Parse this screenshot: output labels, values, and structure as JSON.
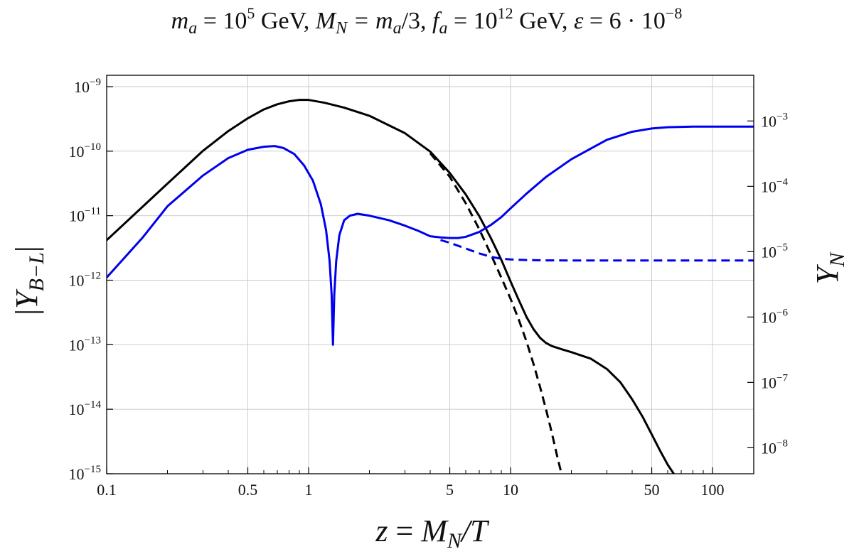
{
  "chart_data": {
    "type": "line",
    "title": "m_a = 10^5 GeV, M_N = m_a/3, f_a = 10^12 GeV, ε = 6·10^-8",
    "title_parts": {
      "lhs": "m",
      "ma_sub": "a",
      "eq1": " = 10",
      "exp1": "5",
      "gev1": " GeV, ",
      "mn": "M",
      "mn_sub": "N",
      "eq2": " = m",
      "ma2_sub": "a",
      "div": "/3, ",
      "fa": "f",
      "fa_sub": "a",
      "eq3": " = 10",
      "exp3": "12",
      "gev3": " GeV, ",
      "eps": "ε",
      "eq4": " = 6 · 10",
      "exp4": "−8"
    },
    "xlabel": "z = M_N/T",
    "xlabel_parts": {
      "z": "z",
      "eq": " = ",
      "M": "M",
      "sub": "N",
      "rest": "/T"
    },
    "ylabel_left": "|Y_B−L|",
    "ylabel_left_parts": {
      "bar1": "|",
      "Y": "Y",
      "sub": "B−L",
      "bar2": "|"
    },
    "ylabel_right": "Y_N",
    "ylabel_right_parts": {
      "Y": "Y",
      "sub": "N"
    },
    "x_scale": "log",
    "y_scale_left": "log",
    "y_scale_right": "log",
    "xlim": [
      0.1,
      160
    ],
    "ylim_left": [
      1e-15,
      1.5e-09
    ],
    "ylim_right": [
      4e-09,
      0.005
    ],
    "grid": true,
    "x_ticks": [
      {
        "value": 0.1,
        "label": "0.1"
      },
      {
        "value": 0.5,
        "label": "0.5"
      },
      {
        "value": 1,
        "label": "1"
      },
      {
        "value": 5,
        "label": "5"
      },
      {
        "value": 10,
        "label": "10"
      },
      {
        "value": 50,
        "label": "50"
      },
      {
        "value": 100,
        "label": "100"
      }
    ],
    "y_ticks_left": [
      {
        "value": 1e-09,
        "base": "10",
        "exp": "−9"
      },
      {
        "value": 1e-10,
        "base": "10",
        "exp": "−10"
      },
      {
        "value": 1e-11,
        "base": "10",
        "exp": "−11"
      },
      {
        "value": 1e-12,
        "base": "10",
        "exp": "−12"
      },
      {
        "value": 1e-13,
        "base": "10",
        "exp": "−13"
      },
      {
        "value": 1e-14,
        "base": "10",
        "exp": "−14"
      },
      {
        "value": 1e-15,
        "base": "10",
        "exp": "−15"
      }
    ],
    "y_ticks_right": [
      {
        "value": 0.001,
        "base": "10",
        "exp": "−3"
      },
      {
        "value": 0.0001,
        "base": "10",
        "exp": "−4"
      },
      {
        "value": 1e-05,
        "base": "10",
        "exp": "−5"
      },
      {
        "value": 1e-06,
        "base": "10",
        "exp": "−6"
      },
      {
        "value": 1e-07,
        "base": "10",
        "exp": "−7"
      },
      {
        "value": 1e-08,
        "base": "10",
        "exp": "−8"
      }
    ],
    "series": [
      {
        "axis": "right",
        "color": "#000000",
        "dash": "solid",
        "points": [
          [
            0.1,
            1.5e-05
          ],
          [
            0.2,
            0.00011
          ],
          [
            0.3,
            0.00035
          ],
          [
            0.4,
            0.0007
          ],
          [
            0.5,
            0.0011
          ],
          [
            0.6,
            0.0015
          ],
          [
            0.7,
            0.0018
          ],
          [
            0.8,
            0.002
          ],
          [
            0.9,
            0.0021
          ],
          [
            1.0,
            0.0021
          ],
          [
            1.2,
            0.0019
          ],
          [
            1.5,
            0.0016
          ],
          [
            2.0,
            0.0012
          ],
          [
            3.0,
            0.00065
          ],
          [
            4.0,
            0.00034
          ],
          [
            5.0,
            0.00016
          ],
          [
            6.0,
            7.5e-05
          ],
          [
            7.0,
            3.5e-05
          ],
          [
            8.0,
            1.6e-05
          ],
          [
            9.0,
            7.5e-06
          ],
          [
            10.0,
            3.5e-06
          ],
          [
            11.0,
            1.8e-06
          ],
          [
            12.0,
            1e-06
          ],
          [
            13.0,
            6.5e-07
          ],
          [
            14.0,
            4.8e-07
          ],
          [
            15.0,
            4e-07
          ],
          [
            16.0,
            3.6e-07
          ],
          [
            18.0,
            3.2e-07
          ],
          [
            20.0,
            2.9e-07
          ],
          [
            25.0,
            2.3e-07
          ],
          [
            30.0,
            1.6e-07
          ],
          [
            35.0,
            1e-07
          ],
          [
            40.0,
            5.5e-08
          ],
          [
            45.0,
            3e-08
          ],
          [
            50.0,
            1.6e-08
          ],
          [
            55.0,
            9e-09
          ],
          [
            60.0,
            5.5e-09
          ],
          [
            65.0,
            3.8e-09
          ]
        ]
      },
      {
        "axis": "right",
        "color": "#000000",
        "dash": "dashed",
        "points": [
          [
            4.0,
            0.00032
          ],
          [
            5.0,
            0.00014
          ],
          [
            6.0,
            5.5e-05
          ],
          [
            7.0,
            2.2e-05
          ],
          [
            8.0,
            9e-06
          ],
          [
            9.0,
            4e-06
          ],
          [
            10.0,
            1.9e-06
          ],
          [
            11.0,
            9e-07
          ],
          [
            12.0,
            4.2e-07
          ],
          [
            13.0,
            1.9e-07
          ],
          [
            14.0,
            8.5e-08
          ],
          [
            15.0,
            3.8e-08
          ],
          [
            16.0,
            1.7e-08
          ],
          [
            17.0,
            7.5e-09
          ],
          [
            17.8,
            4.2e-09
          ]
        ]
      },
      {
        "axis": "left",
        "color": "#0000ee",
        "dash": "solid",
        "points": [
          [
            0.1,
            1.1e-12
          ],
          [
            0.15,
            4.5e-12
          ],
          [
            0.2,
            1.4e-11
          ],
          [
            0.3,
            4.2e-11
          ],
          [
            0.4,
            7.8e-11
          ],
          [
            0.5,
            1.05e-10
          ],
          [
            0.6,
            1.17e-10
          ],
          [
            0.68,
            1.2e-10
          ],
          [
            0.75,
            1.12e-10
          ],
          [
            0.85,
            9e-11
          ],
          [
            0.95,
            6e-11
          ],
          [
            1.05,
            3.5e-11
          ],
          [
            1.15,
            1.5e-11
          ],
          [
            1.22,
            6e-12
          ],
          [
            1.27,
            2e-12
          ],
          [
            1.3,
            6e-13
          ],
          [
            1.32,
            1e-13
          ],
          [
            1.34,
            6e-13
          ],
          [
            1.37,
            2e-12
          ],
          [
            1.42,
            5e-12
          ],
          [
            1.5,
            8.5e-12
          ],
          [
            1.6,
            1e-11
          ],
          [
            1.75,
            1.07e-11
          ],
          [
            2.0,
            1e-11
          ],
          [
            2.5,
            8.5e-12
          ],
          [
            3.0,
            7e-12
          ],
          [
            3.5,
            5.8e-12
          ],
          [
            4.0,
            4.8e-12
          ],
          [
            4.5,
            4.6e-12
          ],
          [
            5.0,
            4.5e-12
          ],
          [
            5.5,
            4.5e-12
          ],
          [
            6.0,
            4.7e-12
          ],
          [
            7.0,
            5.6e-12
          ],
          [
            8.0,
            7.2e-12
          ],
          [
            9.0,
            9.5e-12
          ],
          [
            10.0,
            1.3e-11
          ],
          [
            12.0,
            2.2e-11
          ],
          [
            15.0,
            4e-11
          ],
          [
            20.0,
            7.5e-11
          ],
          [
            25.0,
            1.1e-10
          ],
          [
            30.0,
            1.5e-10
          ],
          [
            40.0,
            2e-10
          ],
          [
            50.0,
            2.25e-10
          ],
          [
            60.0,
            2.35e-10
          ],
          [
            80.0,
            2.4e-10
          ],
          [
            100.0,
            2.4e-10
          ],
          [
            160.0,
            2.4e-10
          ]
        ]
      },
      {
        "axis": "left",
        "color": "#0000ee",
        "dash": "dashed",
        "points": [
          [
            4.5,
            4.2e-12
          ],
          [
            5.0,
            3.8e-12
          ],
          [
            6.0,
            3.1e-12
          ],
          [
            7.0,
            2.6e-12
          ],
          [
            8.0,
            2.3e-12
          ],
          [
            9.0,
            2.15e-12
          ],
          [
            10.0,
            2.1e-12
          ],
          [
            12.0,
            2.05e-12
          ],
          [
            15.0,
            2.03e-12
          ],
          [
            20.0,
            2.02e-12
          ],
          [
            50.0,
            2.02e-12
          ],
          [
            160.0,
            2.02e-12
          ]
        ]
      }
    ]
  }
}
